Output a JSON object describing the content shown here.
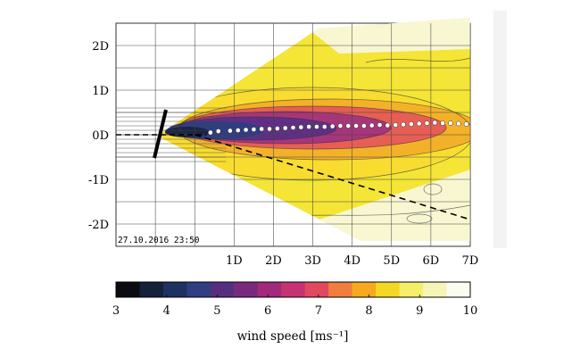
{
  "chart_data": {
    "type": "heatmap",
    "timestamp": "27.10.2016 23:50",
    "x_ticks": [
      "1D",
      "2D",
      "3D",
      "4D",
      "5D",
      "6D",
      "7D"
    ],
    "x_tick_values": [
      1,
      2,
      3,
      4,
      5,
      6,
      7
    ],
    "y_ticks": [
      "2D",
      "1D",
      "0D",
      "-1D",
      "-2D"
    ],
    "y_tick_values": [
      2,
      1,
      0,
      -1,
      -2
    ],
    "xlim": [
      -2.0,
      7.0
    ],
    "ylim": [
      -2.5,
      2.5
    ],
    "grid": true,
    "wake_center_points": [
      [
        0.4,
        0.05
      ],
      [
        0.6,
        0.08
      ],
      [
        0.9,
        0.09
      ],
      [
        1.1,
        0.1
      ],
      [
        1.3,
        0.11
      ],
      [
        1.5,
        0.12
      ],
      [
        1.7,
        0.13
      ],
      [
        1.9,
        0.13
      ],
      [
        2.1,
        0.14
      ],
      [
        2.3,
        0.15
      ],
      [
        2.5,
        0.16
      ],
      [
        2.7,
        0.17
      ],
      [
        2.9,
        0.18
      ],
      [
        3.1,
        0.18
      ],
      [
        3.3,
        0.18
      ],
      [
        3.5,
        0.19
      ],
      [
        3.7,
        0.2
      ],
      [
        3.9,
        0.2
      ],
      [
        4.1,
        0.2
      ],
      [
        4.3,
        0.2
      ],
      [
        4.5,
        0.21
      ],
      [
        4.7,
        0.22
      ],
      [
        4.9,
        0.21
      ],
      [
        5.1,
        0.22
      ],
      [
        5.3,
        0.23
      ],
      [
        5.5,
        0.24
      ],
      [
        5.7,
        0.25
      ],
      [
        5.9,
        0.26
      ],
      [
        6.1,
        0.27
      ],
      [
        6.3,
        0.26
      ],
      [
        6.5,
        0.26
      ],
      [
        6.7,
        0.25
      ],
      [
        6.9,
        0.24
      ]
    ],
    "dashed_line": [
      [
        0,
        0
      ],
      [
        7,
        -1.9
      ]
    ],
    "colorbar": {
      "label": "wind speed [ms⁻¹]",
      "min": 3,
      "max": 10,
      "tick_labels": [
        "3",
        "4",
        "5",
        "6",
        "7",
        "8",
        "9",
        "10"
      ],
      "colors": [
        "#0b0b12",
        "#15203a",
        "#1e3261",
        "#303e82",
        "#56307f",
        "#7a2a7e",
        "#a12a7a",
        "#c63375",
        "#e0495e",
        "#f07d3e",
        "#f6a91f",
        "#f3d823",
        "#f5ee6a",
        "#f7f4b8",
        "#fbfbf2"
      ]
    }
  }
}
